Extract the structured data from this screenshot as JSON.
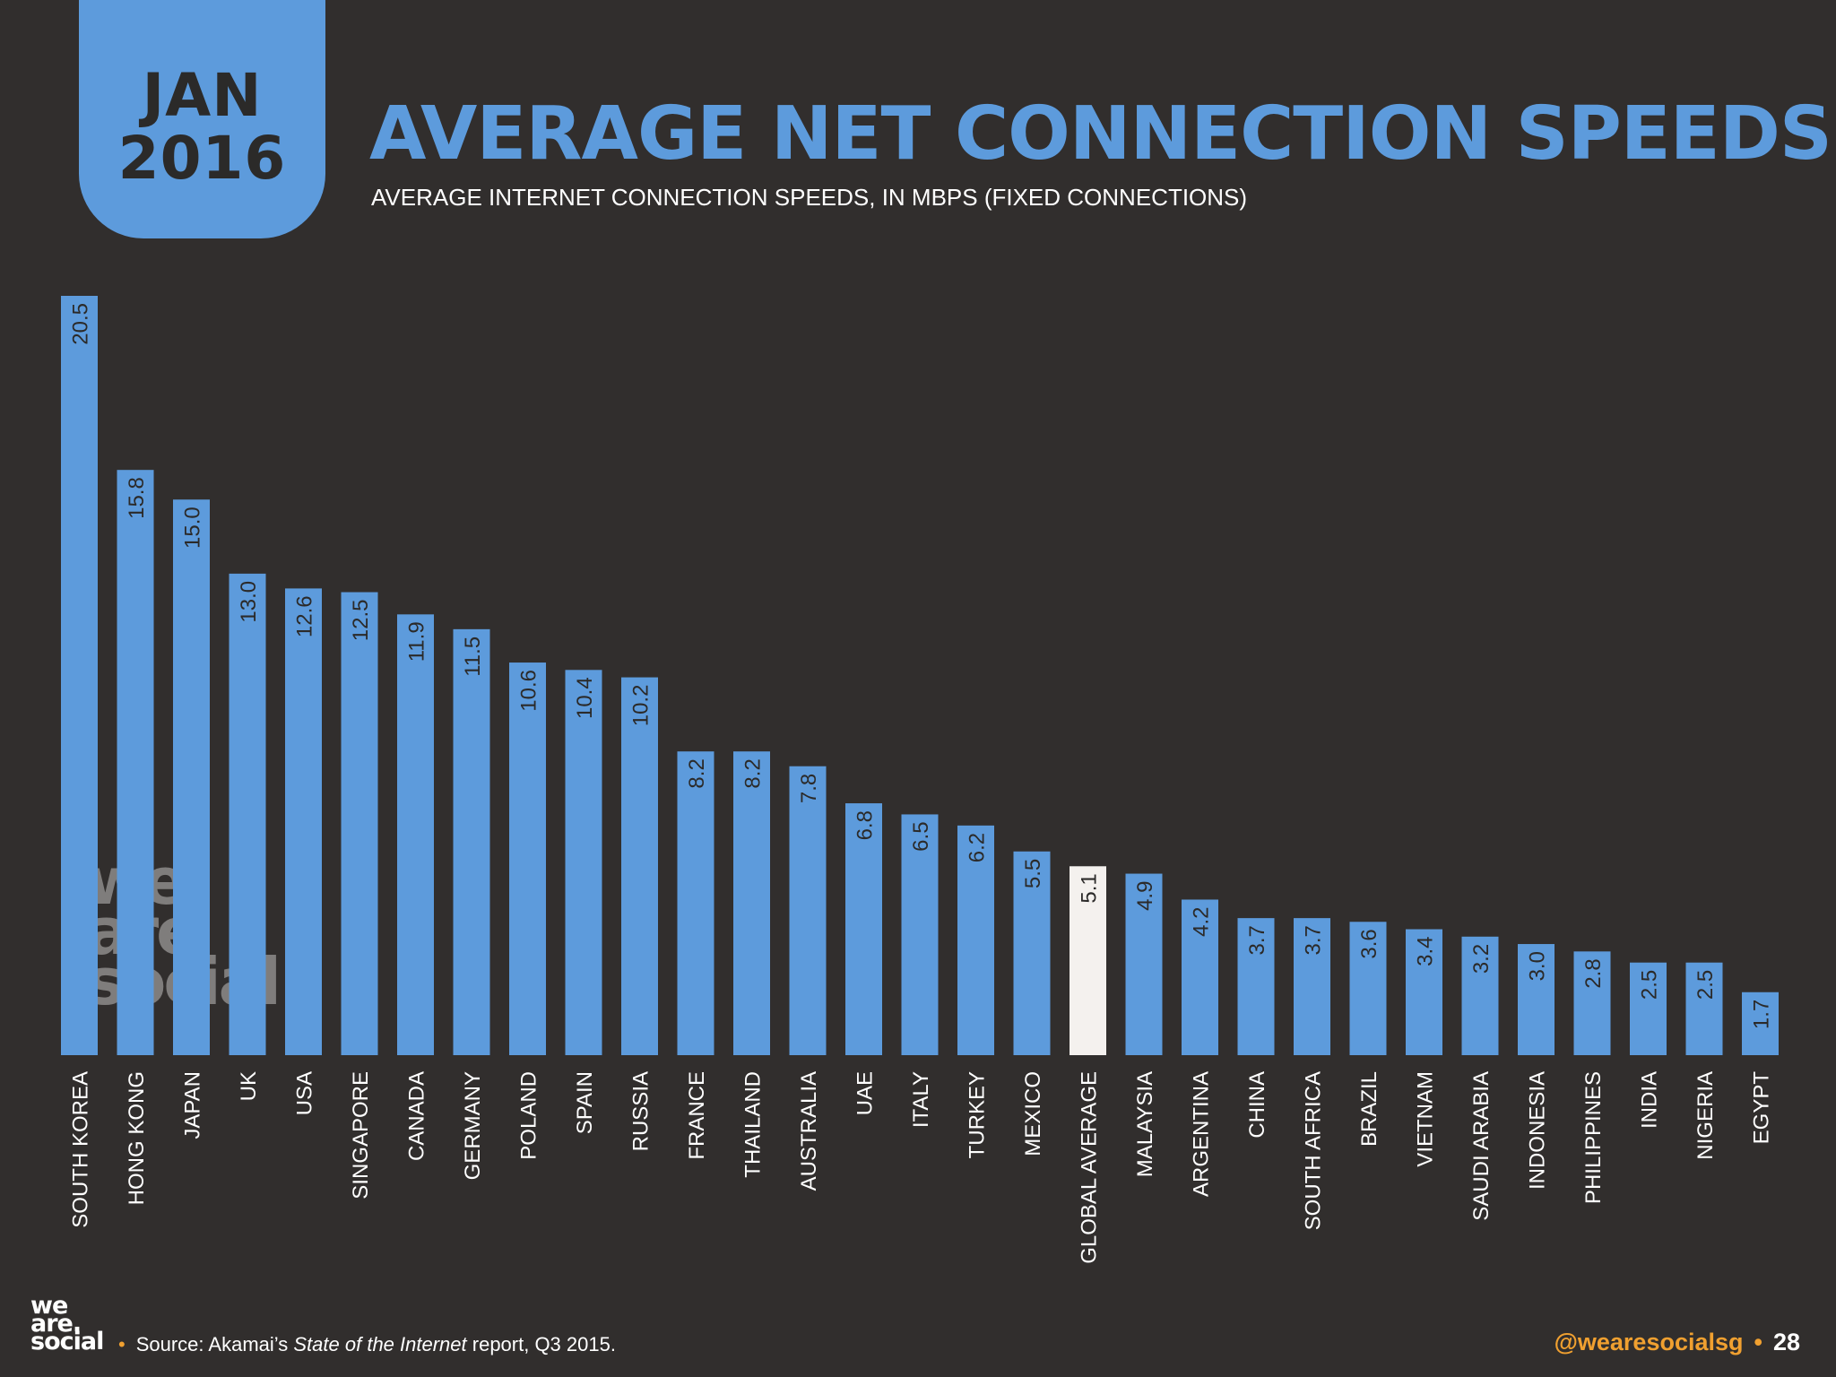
{
  "header": {
    "badge_line1": "JAN",
    "badge_line2": "2016",
    "title": "AVERAGE NET CONNECTION SPEEDS",
    "subtitle": "AVERAGE INTERNET CONNECTION SPEEDS, IN MBPS (FIXED CONNECTIONS)"
  },
  "watermark": {
    "line1": "we",
    "line2": "are",
    "line3": "social"
  },
  "footer": {
    "logo_line1": "we",
    "logo_line2": "are.",
    "logo_line3": "social",
    "source_prefix": "Source: Akamai’s ",
    "source_italic": "State of the Internet",
    "source_suffix": " report, Q3 2015.",
    "handle": "@wearesocialsg",
    "page_number": "28"
  },
  "colors": {
    "background": "#312e2d",
    "bar": "#5d9bdc",
    "highlight_bar": "#f4f1ee",
    "accent": "#f0a030"
  },
  "chart_data": {
    "type": "bar",
    "orientation": "vertical",
    "title": "AVERAGE NET CONNECTION SPEEDS",
    "subtitle": "AVERAGE INTERNET CONNECTION SPEEDS, IN MBPS (FIXED CONNECTIONS)",
    "categories": [
      "SOUTH KOREA",
      "HONG KONG",
      "JAPAN",
      "UK",
      "USA",
      "SINGAPORE",
      "CANADA",
      "GERMANY",
      "POLAND",
      "SPAIN",
      "RUSSIA",
      "FRANCE",
      "THAILAND",
      "AUSTRALIA",
      "UAE",
      "ITALY",
      "TURKEY",
      "MEXICO",
      "GLOBAL AVERAGE",
      "MALAYSIA",
      "ARGENTINA",
      "CHINA",
      "SOUTH AFRICA",
      "BRAZIL",
      "VIETNAM",
      "SAUDI ARABIA",
      "INDONESIA",
      "PHILIPPINES",
      "INDIA",
      "NIGERIA",
      "EGYPT"
    ],
    "values": [
      20.5,
      15.8,
      15.0,
      13.0,
      12.6,
      12.5,
      11.9,
      11.5,
      10.6,
      10.4,
      10.2,
      8.2,
      8.2,
      7.8,
      6.8,
      6.5,
      6.2,
      5.5,
      5.1,
      4.9,
      4.2,
      3.7,
      3.7,
      3.6,
      3.4,
      3.2,
      3.0,
      2.8,
      2.5,
      2.5,
      1.7
    ],
    "value_labels": [
      "20.5",
      "15.8",
      "15.0",
      "13.0",
      "12.6",
      "12.5",
      "11.9",
      "11.5",
      "10.6",
      "10.4",
      "10.2",
      "8.2",
      "8.2",
      "7.8",
      "6.8",
      "6.5",
      "6.2",
      "5.5",
      "5.1",
      "4.9",
      "4.2",
      "3.7",
      "3.7",
      "3.6",
      "3.4",
      "3.2",
      "3.0",
      "2.8",
      "2.5",
      "2.5",
      "1.7"
    ],
    "highlight_category": "GLOBAL AVERAGE",
    "ylim": [
      0,
      20.5
    ],
    "grid": false,
    "legend": "none",
    "xlabel": "",
    "ylabel": ""
  }
}
